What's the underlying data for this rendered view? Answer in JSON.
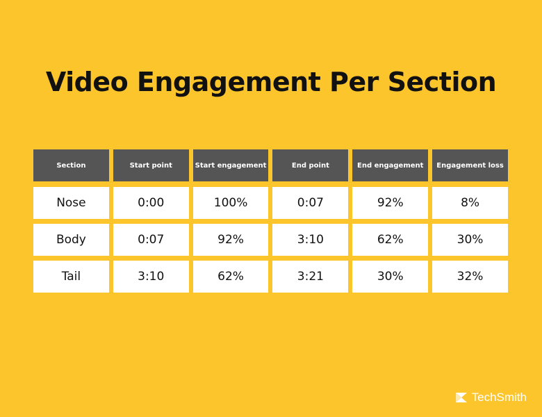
{
  "title": "Video Engagement Per Section",
  "chart_data": {
    "type": "table",
    "columns": [
      "Section",
      "Start point",
      "Start engagement",
      "End point",
      "End engagement",
      "Engagement loss"
    ],
    "rows": [
      [
        "Nose",
        "0:00",
        "100%",
        "0:07",
        "92%",
        "8%"
      ],
      [
        "Body",
        "0:07",
        "92%",
        "3:10",
        "62%",
        "30%"
      ],
      [
        "Tail",
        "3:10",
        "62%",
        "3:21",
        "30%",
        "32%"
      ]
    ]
  },
  "logo": {
    "text": "TechSmith"
  },
  "colors": {
    "background": "#FDC52C",
    "header": "#555555",
    "cell": "#FFFFFF"
  }
}
